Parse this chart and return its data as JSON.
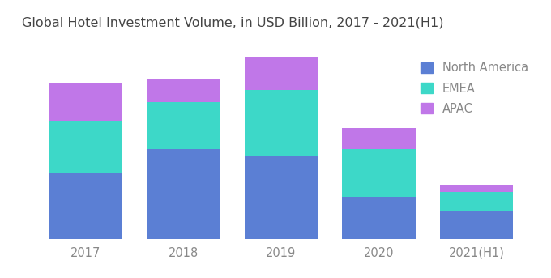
{
  "title": "Global Hotel Investment Volume, in USD Billion, 2017 - 2021(H1)",
  "categories": [
    "2017",
    "2018",
    "2019",
    "2020",
    "2021(H1)"
  ],
  "north_america": [
    28,
    38,
    35,
    18,
    12
  ],
  "emea": [
    22,
    20,
    28,
    20,
    8
  ],
  "apac": [
    16,
    10,
    14,
    9,
    3
  ],
  "color_na": "#5B7FD4",
  "color_emea": "#3DD8C8",
  "color_apac": "#C077E8",
  "background_color": "#ffffff",
  "title_fontsize": 11.5,
  "tick_fontsize": 10.5,
  "legend_fontsize": 10.5,
  "bar_width": 0.75
}
